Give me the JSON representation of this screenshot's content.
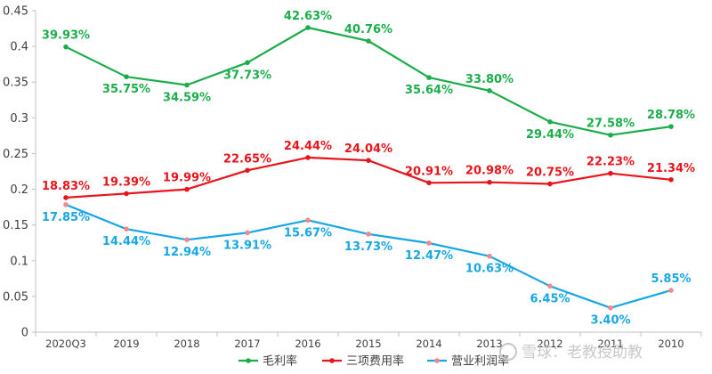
{
  "chart_data": {
    "type": "line",
    "categories": [
      "2020Q3",
      "2019",
      "2018",
      "2017",
      "2016",
      "2015",
      "2014",
      "2013",
      "2012",
      "2011",
      "2010"
    ],
    "ylim": [
      0,
      0.45
    ],
    "yticks": [
      "0",
      "0.05",
      "0.1",
      "0.15",
      "0.2",
      "0.25",
      "0.3",
      "0.35",
      "0.4",
      "0.45"
    ],
    "grid": false,
    "legend_position": "bottom",
    "series": [
      {
        "name": "毛利率",
        "color": "#1aad4a",
        "values": [
          0.3993,
          0.3575,
          0.3459,
          0.3773,
          0.4263,
          0.4076,
          0.3564,
          0.338,
          0.2944,
          0.2758,
          0.2878
        ],
        "labels": [
          "39.93%",
          "35.75%",
          "34.59%",
          "37.73%",
          "42.63%",
          "40.76%",
          "35.64%",
          "33.80%",
          "29.44%",
          "27.58%",
          "28.78%"
        ]
      },
      {
        "name": "三项费用率",
        "color": "#e8141c",
        "values": [
          0.1883,
          0.1939,
          0.1999,
          0.2265,
          0.2444,
          0.2404,
          0.2091,
          0.2098,
          0.2075,
          0.2223,
          0.2134
        ],
        "labels": [
          "18.83%",
          "19.39%",
          "19.99%",
          "22.65%",
          "24.44%",
          "24.04%",
          "20.91%",
          "20.98%",
          "20.75%",
          "22.23%",
          "21.34%"
        ]
      },
      {
        "name": "营业利润率",
        "color": "#16a7e4",
        "values": [
          0.1785,
          0.1444,
          0.1294,
          0.1391,
          0.1567,
          0.1373,
          0.1247,
          0.1063,
          0.0645,
          0.034,
          0.0585
        ],
        "labels": [
          "17.85%",
          "14.44%",
          "12.94%",
          "13.91%",
          "15.67%",
          "13.73%",
          "12.47%",
          "10.63%",
          "6.45%",
          "3.40%",
          "5.85%"
        ]
      }
    ]
  },
  "watermark": "雪球：老教授助教"
}
